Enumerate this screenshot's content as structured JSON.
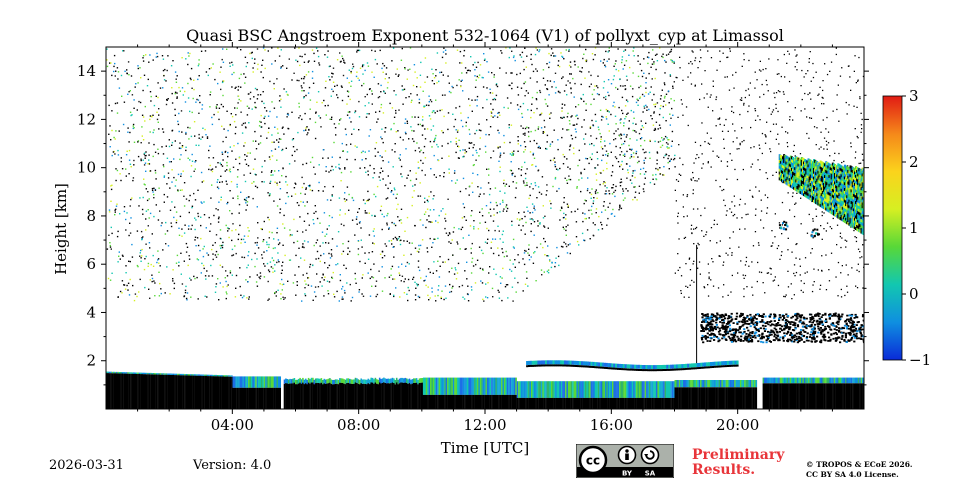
{
  "chart_data": {
    "type": "heatmap",
    "title": "Quasi BSC Angstroem Exponent 532-1064 (V1) of pollyxt_cyp at Limassol",
    "xlabel": "Time [UTC]",
    "ylabel": "Height [km]",
    "xlim_hours": [
      0,
      24
    ],
    "ylim_km": [
      0,
      15
    ],
    "x_ticks": [
      {
        "value": 4,
        "label": "04:00"
      },
      {
        "value": 8,
        "label": "08:00"
      },
      {
        "value": 12,
        "label": "12:00"
      },
      {
        "value": 16,
        "label": "16:00"
      },
      {
        "value": 20,
        "label": "20:00"
      }
    ],
    "y_ticks": [
      {
        "value": 2,
        "label": "2"
      },
      {
        "value": 4,
        "label": "4"
      },
      {
        "value": 6,
        "label": "6"
      },
      {
        "value": 8,
        "label": "8"
      },
      {
        "value": 10,
        "label": "10"
      },
      {
        "value": 12,
        "label": "12"
      },
      {
        "value": 14,
        "label": "14"
      }
    ],
    "colorbar": {
      "range": [
        -1,
        3
      ],
      "ticks": [
        {
          "value": 3,
          "label": "3"
        },
        {
          "value": 2,
          "label": "2"
        },
        {
          "value": 1,
          "label": "1"
        },
        {
          "value": 0,
          "label": "0"
        },
        {
          "value": -1,
          "label": "−1"
        }
      ],
      "colors": [
        "#0a2ad8",
        "#0f8fe0",
        "#12c7b0",
        "#58d838",
        "#d6ef22",
        "#fbd31c",
        "#f5881a",
        "#e11b14"
      ]
    },
    "features": [
      {
        "name": "boundary-layer-aerosol",
        "time_range": [
          0.0,
          24.0
        ],
        "height_range_km": [
          0.0,
          1.6
        ]
      },
      {
        "name": "gap-1",
        "time_range": [
          5.5,
          5.6
        ]
      },
      {
        "name": "gap-2",
        "time_range": [
          20.6,
          20.75
        ]
      },
      {
        "name": "elevated-layer",
        "time_range": [
          13.3,
          20.0
        ],
        "height_range_km": [
          1.5,
          2.1
        ]
      },
      {
        "name": "lofted-layer",
        "time_range": [
          18.8,
          24.0
        ],
        "height_range_km": [
          2.8,
          4.0
        ]
      },
      {
        "name": "cirrus",
        "time_range": [
          21.3,
          24.0
        ],
        "height_range_km": [
          7.3,
          10.6
        ]
      },
      {
        "name": "noise-region",
        "time_range": [
          0.0,
          18.0
        ],
        "height_range_km": [
          4.5,
          15.0
        ]
      }
    ]
  },
  "footer": {
    "date": "2026-03-31",
    "version": "Version: 4.0",
    "preliminary_line1": "Preliminary",
    "preliminary_line2": "Results.",
    "copyright_line1": "© TROPOS & ECoE 2026.",
    "copyright_line2": "CC BY SA 4.0 License.",
    "license_badge": {
      "cc": "cc",
      "by": "BY",
      "sa": "SA"
    }
  }
}
